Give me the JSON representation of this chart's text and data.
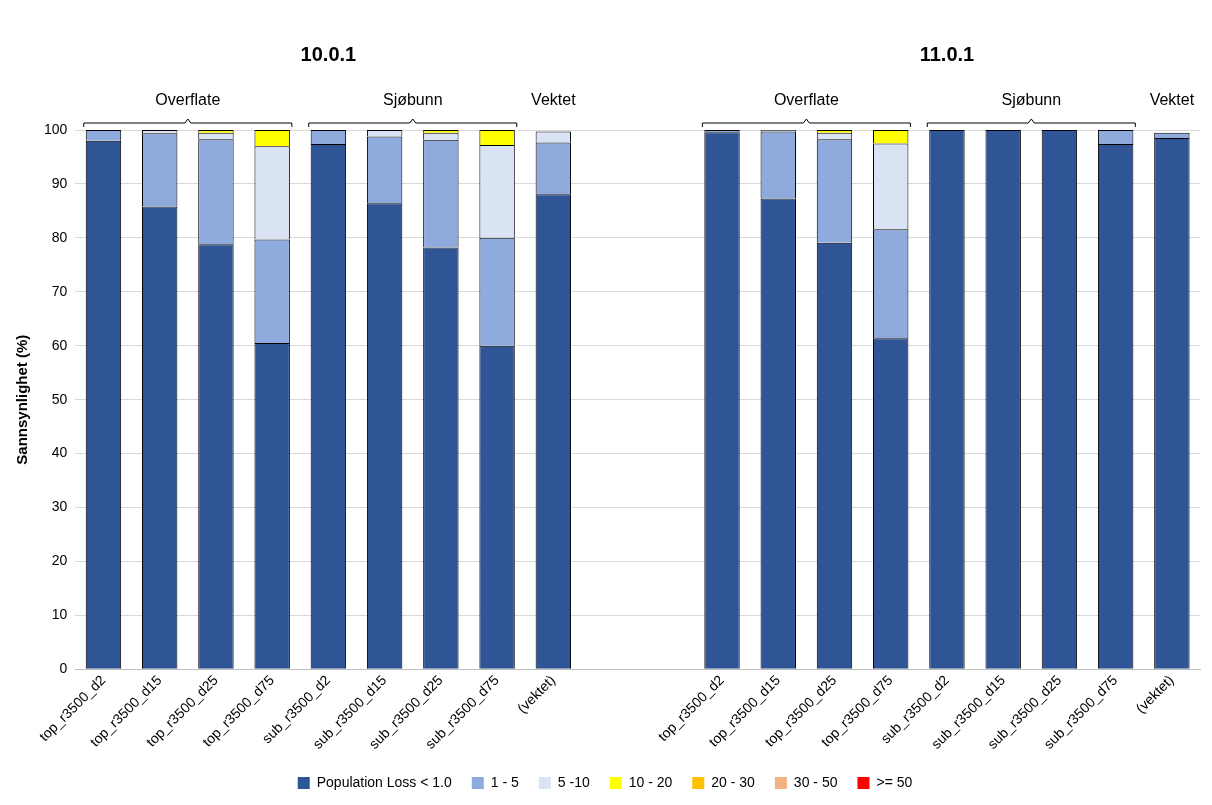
{
  "chart_data": {
    "type": "bar",
    "stacked": true,
    "ylabel": "Sannsynlighet (%)",
    "categories": [
      "top_r3500_d2",
      "top_r3500_d15",
      "top_r3500_d25",
      "top_r3500_d75",
      "sub_r3500_d2",
      "sub_r3500_d15",
      "sub_r3500_d25",
      "sub_r3500_d75",
      "(vektet)",
      null,
      null,
      "top_r3500_d2",
      "top_r3500_d15",
      "top_r3500_d25",
      "top_r3500_d75",
      "sub_r3500_d2",
      "sub_r3500_d15",
      "sub_r3500_d25",
      "sub_r3500_d75",
      "(vektet)"
    ],
    "series": [
      {
        "name": "Population Loss < 1.0",
        "color": "#2f5597",
        "values": [
          98,
          85.8,
          78.8,
          60.5,
          97.4,
          86.4,
          78.2,
          60,
          88.1,
          null,
          null,
          99.6,
          87.3,
          79.1,
          61.4,
          100,
          100,
          100,
          97.4,
          98.5
        ]
      },
      {
        "name": "1 - 5",
        "color": "#8faadc",
        "values": [
          2,
          13.6,
          19.5,
          19.2,
          2.6,
          12.4,
          20,
          20,
          9.6,
          null,
          null,
          0.4,
          12.4,
          19.2,
          20.2,
          0,
          0,
          0,
          2.6,
          1
        ]
      },
      {
        "name": "5 -10",
        "color": "#dae3f3",
        "values": [
          0,
          0.6,
          1.2,
          17.3,
          0,
          1.2,
          1.3,
          17.2,
          2,
          null,
          null,
          0,
          0.3,
          1.2,
          15.9,
          0,
          0,
          0,
          0,
          null
        ]
      },
      {
        "name": "10 - 20",
        "color": "#ffff00",
        "values": [
          0,
          0,
          0.5,
          3,
          0,
          0,
          0.5,
          2.8,
          null,
          null,
          null,
          0,
          0,
          0.5,
          2.5,
          0,
          0,
          0,
          0,
          null
        ]
      },
      {
        "name": "20 - 30",
        "color": "#ffc000",
        "values": [
          0,
          0,
          0,
          0,
          0,
          0,
          0,
          0,
          0,
          null,
          null,
          0,
          0,
          0,
          0,
          0,
          0,
          0,
          0,
          0
        ]
      },
      {
        "name": "30 - 50",
        "color": "#f4b183",
        "values": [
          0,
          0,
          0,
          0,
          0,
          0,
          0,
          0,
          0,
          null,
          null,
          0,
          0,
          0,
          0,
          0,
          0,
          0,
          0,
          0
        ]
      },
      {
        "name": ">= 50",
        "color": "#ff0000",
        "values": [
          0,
          0,
          0,
          0,
          0,
          0,
          0,
          0,
          0,
          null,
          null,
          0,
          0,
          0,
          0,
          0,
          0,
          0,
          0,
          0
        ]
      }
    ],
    "ylim": [
      0,
      100
    ],
    "yticks": [
      0,
      10,
      20,
      30,
      40,
      50,
      60,
      70,
      80,
      90,
      100
    ],
    "grid": "y",
    "legend": "bottom",
    "annotations": [
      "10.0.1",
      "11.0.1",
      "Overflate",
      "Sjøbunn",
      "Vektet",
      "Overflate",
      "Sjøbunn",
      "Vektet"
    ]
  }
}
